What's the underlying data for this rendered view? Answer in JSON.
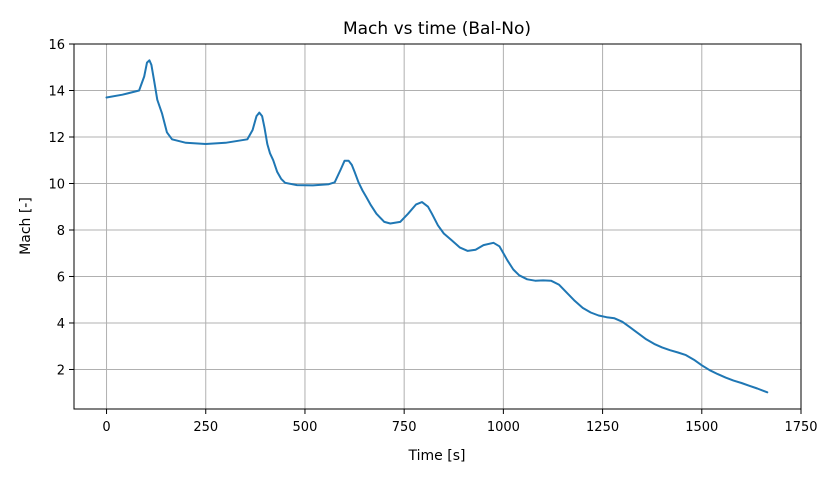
{
  "chart_data": {
    "type": "line",
    "title": "Mach vs time  (Bal-No)",
    "xlabel": "Time [s]",
    "ylabel": "Mach [-]",
    "xlim": [
      -82,
      1750
    ],
    "ylim": [
      0.3,
      16
    ],
    "xticks": [
      0,
      250,
      500,
      750,
      1000,
      1250,
      1500,
      1750
    ],
    "xtick_labels": [
      "0",
      "250",
      "500",
      "750",
      "1000",
      "1250",
      "1500",
      "1750"
    ],
    "yticks": [
      2,
      4,
      6,
      8,
      10,
      12,
      14,
      16
    ],
    "ytick_labels": [
      "2",
      "4",
      "6",
      "8",
      "10",
      "12",
      "14",
      "16"
    ],
    "grid": true,
    "line_color": "#1f77b4",
    "series": [
      {
        "x": [
          0,
          40,
          82,
          95,
          102,
          108,
          113,
          120,
          128,
          140,
          152,
          165,
          200,
          250,
          300,
          355,
          368,
          378,
          385,
          392,
          398,
          405,
          412,
          420,
          430,
          440,
          450,
          480,
          520,
          560,
          575,
          590,
          600,
          610,
          618,
          625,
          635,
          645,
          655,
          665,
          680,
          700,
          715,
          740,
          760,
          780,
          795,
          810,
          820,
          835,
          850,
          870,
          890,
          910,
          930,
          950,
          975,
          990,
          1000,
          1010,
          1025,
          1040,
          1060,
          1080,
          1100,
          1120,
          1140,
          1160,
          1180,
          1200,
          1220,
          1240,
          1260,
          1280,
          1300,
          1320,
          1340,
          1360,
          1380,
          1400,
          1420,
          1440,
          1460,
          1480,
          1500,
          1520,
          1540,
          1560,
          1580,
          1600,
          1620,
          1640,
          1665
        ],
        "y": [
          13.7,
          13.82,
          14.0,
          14.6,
          15.2,
          15.3,
          15.1,
          14.4,
          13.6,
          13.0,
          12.2,
          11.9,
          11.75,
          11.7,
          11.75,
          11.9,
          12.3,
          12.9,
          13.05,
          12.9,
          12.4,
          11.7,
          11.3,
          11.0,
          10.5,
          10.2,
          10.03,
          9.93,
          9.92,
          9.97,
          10.05,
          10.6,
          10.98,
          10.98,
          10.8,
          10.5,
          10.05,
          9.7,
          9.4,
          9.1,
          8.7,
          8.35,
          8.28,
          8.35,
          8.7,
          9.1,
          9.2,
          9.0,
          8.7,
          8.2,
          7.85,
          7.55,
          7.25,
          7.1,
          7.15,
          7.35,
          7.45,
          7.3,
          7.0,
          6.7,
          6.3,
          6.05,
          5.88,
          5.82,
          5.83,
          5.82,
          5.65,
          5.3,
          4.95,
          4.65,
          4.45,
          4.32,
          4.25,
          4.2,
          4.05,
          3.8,
          3.55,
          3.3,
          3.1,
          2.95,
          2.83,
          2.73,
          2.62,
          2.42,
          2.18,
          1.97,
          1.8,
          1.65,
          1.52,
          1.42,
          1.3,
          1.18,
          1.02
        ]
      }
    ]
  }
}
